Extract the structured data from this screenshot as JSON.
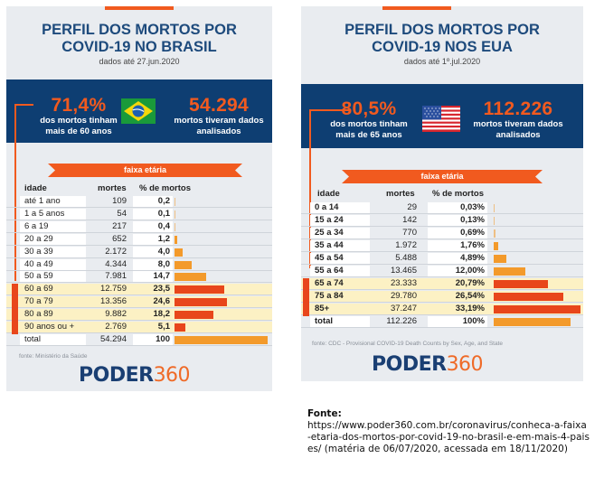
{
  "brasil": {
    "title_line1": "PERFIL DOS MORTOS POR",
    "title_line2": "COVID-19 NO BRASIL",
    "subtitle": "dados até 27.jun.2020",
    "stat_left_value": "71,4%",
    "stat_left_line1": "dos mortos tinham",
    "stat_left_line2": "mais de 60 anos",
    "flag_icon": "brazil-flag",
    "stat_right_value": "54.294",
    "stat_right_line1": "mortos tiveram dados",
    "stat_right_line2": "analisados",
    "ribbon_label": "faixa etária",
    "headers": {
      "age": "idade",
      "deaths": "mortes",
      "pct": "% de mortos"
    },
    "source": "fonte: Ministério da Saúde",
    "logo_a": "PODER",
    "logo_b": "360"
  },
  "eua": {
    "title_line1": "PERFIL DOS MORTOS POR",
    "title_line2": "COVID-19 NOS EUA",
    "subtitle": "dados até 1º.jul.2020",
    "stat_left_value": "80,5%",
    "stat_left_line1": "dos mortos tinham",
    "stat_left_line2": "mais de 65 anos",
    "flag_icon": "usa-flag",
    "stat_right_value": "112.226",
    "stat_right_line1": "mortos tiveram dados",
    "stat_right_line2": "analisados",
    "ribbon_label": "faixa etária",
    "headers": {
      "age": "idade",
      "deaths": "mortes",
      "pct": "% de mortos"
    },
    "source": "fonte: CDC - Provisional COVID-19 Death Counts by Sex, Age, and State",
    "logo_a": "PODER",
    "logo_b": "360"
  },
  "colors": {
    "navy": "#0e3e72",
    "orange": "#f15a1f",
    "bar_light": "#f39a2b",
    "bar_dark": "#e8461b",
    "highlight_row": "#fcf1c4",
    "card_bg": "#e9ecf0"
  },
  "chart_data": [
    {
      "type": "table",
      "title": "PERFIL DOS MORTOS POR COVID-19 NO BRASIL",
      "subtitle": "dados até 27.jun.2020",
      "columns": [
        "idade",
        "mortes",
        "% de mortos"
      ],
      "rows": [
        {
          "age": "até 1 ano",
          "deaths": "109",
          "pct": "0,2",
          "pct_value": 0.2,
          "highlight": false
        },
        {
          "age": "1 a 5 anos",
          "deaths": "54",
          "pct": "0,1",
          "pct_value": 0.1,
          "highlight": false
        },
        {
          "age": "6 a 19",
          "deaths": "217",
          "pct": "0,4",
          "pct_value": 0.4,
          "highlight": false
        },
        {
          "age": "20 a 29",
          "deaths": "652",
          "pct": "1,2",
          "pct_value": 1.2,
          "highlight": false
        },
        {
          "age": "30 a 39",
          "deaths": "2.172",
          "pct": "4,0",
          "pct_value": 4.0,
          "highlight": false
        },
        {
          "age": "40 a 49",
          "deaths": "4.344",
          "pct": "8,0",
          "pct_value": 8.0,
          "highlight": false
        },
        {
          "age": "50 a 59",
          "deaths": "7.981",
          "pct": "14,7",
          "pct_value": 14.7,
          "highlight": false
        },
        {
          "age": "60 a 69",
          "deaths": "12.759",
          "pct": "23,5",
          "pct_value": 23.5,
          "highlight": true
        },
        {
          "age": "70 a 79",
          "deaths": "13.356",
          "pct": "24,6",
          "pct_value": 24.6,
          "highlight": true
        },
        {
          "age": "80 a 89",
          "deaths": "9.882",
          "pct": "18,2",
          "pct_value": 18.2,
          "highlight": true
        },
        {
          "age": "90 anos ou +",
          "deaths": "2.769",
          "pct": "5,1",
          "pct_value": 5.1,
          "highlight": true
        }
      ],
      "total": {
        "age": "total",
        "deaths": "54.294",
        "pct": "100",
        "pct_value": 100
      },
      "source": "fonte: Ministério da Saúde"
    },
    {
      "type": "table",
      "title": "PERFIL DOS MORTOS POR COVID-19 NOS EUA",
      "subtitle": "dados até 1º.jul.2020",
      "columns": [
        "idade",
        "mortes",
        "% de mortos"
      ],
      "rows": [
        {
          "age": "0 a 14",
          "deaths": "29",
          "pct": "0,03%",
          "pct_value": 0.03,
          "highlight": false
        },
        {
          "age": "15 a 24",
          "deaths": "142",
          "pct": "0,13%",
          "pct_value": 0.13,
          "highlight": false
        },
        {
          "age": "25 a 34",
          "deaths": "770",
          "pct": "0,69%",
          "pct_value": 0.69,
          "highlight": false
        },
        {
          "age": "35 a 44",
          "deaths": "1.972",
          "pct": "1,76%",
          "pct_value": 1.76,
          "highlight": false
        },
        {
          "age": "45 a 54",
          "deaths": "5.488",
          "pct": "4,89%",
          "pct_value": 4.89,
          "highlight": false
        },
        {
          "age": "55 a 64",
          "deaths": "13.465",
          "pct": "12,00%",
          "pct_value": 12.0,
          "highlight": false
        },
        {
          "age": "65 a 74",
          "deaths": "23.333",
          "pct": "20,79%",
          "pct_value": 20.79,
          "highlight": true
        },
        {
          "age": "75 a 84",
          "deaths": "29.780",
          "pct": "26,54%",
          "pct_value": 26.54,
          "highlight": true
        },
        {
          "age": "85+",
          "deaths": "37.247",
          "pct": "33,19%",
          "pct_value": 33.19,
          "highlight": true
        }
      ],
      "total": {
        "age": "total",
        "deaths": "112.226",
        "pct": "100%",
        "pct_value": 100
      },
      "source": "fonte: CDC - Provisional COVID-19 Death Counts by Sex, Age, and State"
    }
  ],
  "fonte": {
    "label": "Fonte:",
    "text": "https://www.poder360.com.br/coronavirus/conheca-a-faixa-etaria-dos-mortos-por-covid-19-no-brasil-e-em-mais-4-paises/ (matéria de 06/07/2020, acessada em 18/11/2020)"
  }
}
